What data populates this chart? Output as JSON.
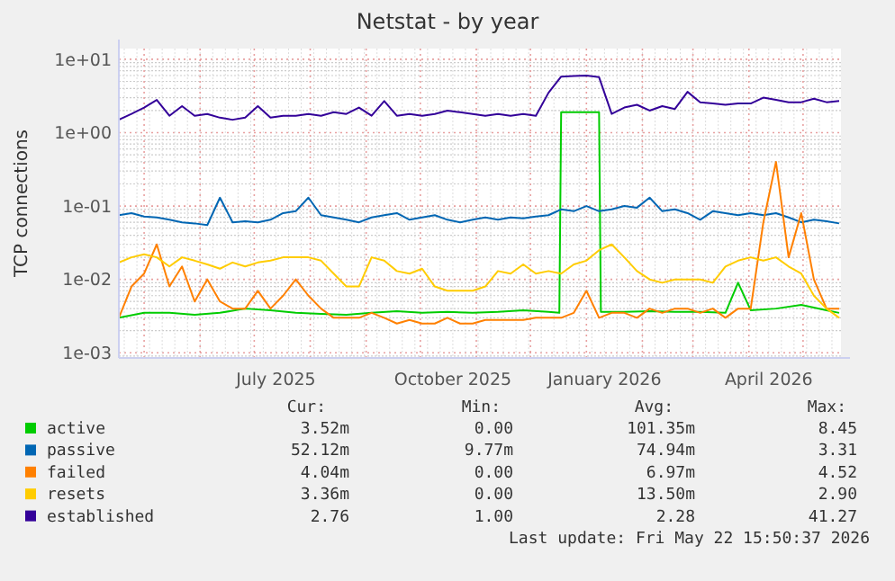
{
  "chart_data": {
    "type": "line",
    "title": "Netstat - by year",
    "ylabel": "TCP connections",
    "log": "y",
    "grid": true,
    "legend": "bottom",
    "marker": "none",
    "line_style": "solid",
    "xlim": [
      "2025-04-17",
      "2026-05-22"
    ],
    "xticks": [
      {
        "value": "2025-07-13",
        "label": "July 2025"
      },
      {
        "value": "2025-10-19",
        "label": "October 2025"
      },
      {
        "value": "2026-01-11",
        "label": "January 2026"
      },
      {
        "value": "2026-04-12",
        "label": "April 2026"
      }
    ],
    "ylim": [
      0.00085,
      14
    ],
    "yticks": [
      {
        "value": 0.001,
        "label": "1e-03"
      },
      {
        "value": 0.01,
        "label": "1e-02"
      },
      {
        "value": 0.1,
        "label": "1e-01"
      },
      {
        "value": 1,
        "label": "1e+00"
      },
      {
        "value": 10,
        "label": "1e+01"
      }
    ],
    "x": [
      "2025-04-17",
      "2025-04-24",
      "2025-05-01",
      "2025-05-08",
      "2025-05-15",
      "2025-05-22",
      "2025-05-29",
      "2025-06-05",
      "2025-06-12",
      "2025-06-19",
      "2025-06-26",
      "2025-07-03",
      "2025-07-10",
      "2025-07-17",
      "2025-07-24",
      "2025-07-31",
      "2025-08-07",
      "2025-08-14",
      "2025-08-21",
      "2025-08-28",
      "2025-09-04",
      "2025-09-11",
      "2025-09-18",
      "2025-09-25",
      "2025-10-02",
      "2025-10-09",
      "2025-10-16",
      "2025-10-23",
      "2025-10-30",
      "2025-11-06",
      "2025-11-13",
      "2025-11-20",
      "2025-11-27",
      "2025-12-04",
      "2025-12-11",
      "2025-12-18",
      "2025-12-25",
      "2026-01-01",
      "2026-01-08",
      "2026-01-15",
      "2026-01-22",
      "2026-01-29",
      "2026-02-05",
      "2026-02-12",
      "2026-02-19",
      "2026-02-26",
      "2026-03-05",
      "2026-03-12",
      "2026-03-19",
      "2026-03-26",
      "2026-04-02",
      "2026-04-09",
      "2026-04-16",
      "2026-04-23",
      "2026-04-30",
      "2026-05-07",
      "2026-05-14",
      "2026-05-21"
    ],
    "series": [
      {
        "name": "active",
        "color": "#00cc00",
        "x": [
          "2025-04-17",
          "2025-05-01",
          "2025-05-15",
          "2025-05-29",
          "2025-06-12",
          "2025-06-26",
          "2025-07-10",
          "2025-07-24",
          "2025-08-07",
          "2025-08-21",
          "2025-09-04",
          "2025-09-18",
          "2025-10-02",
          "2025-10-16",
          "2025-10-30",
          "2025-11-13",
          "2025-11-27",
          "2025-12-11",
          "2025-12-17",
          "2025-12-18",
          "2025-12-25",
          "2026-01-01",
          "2026-01-08",
          "2026-01-09",
          "2026-01-22",
          "2026-02-05",
          "2026-02-19",
          "2026-03-05",
          "2026-03-19",
          "2026-03-26",
          "2026-04-02",
          "2026-04-16",
          "2026-04-30",
          "2026-05-14",
          "2026-05-21"
        ],
        "values": [
          0.003,
          0.0035,
          0.0035,
          0.0033,
          0.0035,
          0.004,
          0.0038,
          0.0035,
          0.0034,
          0.0033,
          0.0035,
          0.0037,
          0.0035,
          0.0036,
          0.0035,
          0.0036,
          0.0038,
          0.0036,
          0.0035,
          1.9,
          1.9,
          1.9,
          1.9,
          0.0036,
          0.0036,
          0.0037,
          0.0036,
          0.0036,
          0.0035,
          0.009,
          0.0038,
          0.004,
          0.0045,
          0.0038,
          0.0035
        ]
      },
      {
        "name": "passive",
        "color": "#0066b3",
        "values": [
          0.075,
          0.08,
          0.072,
          0.07,
          0.065,
          0.06,
          0.058,
          0.055,
          0.13,
          0.06,
          0.062,
          0.06,
          0.065,
          0.08,
          0.085,
          0.13,
          0.075,
          0.07,
          0.065,
          0.06,
          0.07,
          0.075,
          0.08,
          0.065,
          0.07,
          0.075,
          0.065,
          0.06,
          0.065,
          0.07,
          0.065,
          0.07,
          0.068,
          0.072,
          0.075,
          0.09,
          0.085,
          0.1,
          0.085,
          0.09,
          0.1,
          0.095,
          0.13,
          0.085,
          0.09,
          0.08,
          0.065,
          0.085,
          0.08,
          0.075,
          0.08,
          0.075,
          0.08,
          0.07,
          0.06,
          0.065,
          0.062,
          0.058
        ]
      },
      {
        "name": "failed",
        "color": "#ff8000",
        "values": [
          0.003,
          0.008,
          0.012,
          0.03,
          0.008,
          0.015,
          0.005,
          0.01,
          0.005,
          0.004,
          0.004,
          0.007,
          0.004,
          0.006,
          0.01,
          0.006,
          0.004,
          0.003,
          0.003,
          0.003,
          0.0035,
          0.003,
          0.0025,
          0.0028,
          0.0025,
          0.0025,
          0.003,
          0.0025,
          0.0025,
          0.0028,
          0.0028,
          0.0028,
          0.0028,
          0.003,
          0.003,
          0.003,
          0.0035,
          0.007,
          0.003,
          0.0035,
          0.0035,
          0.003,
          0.004,
          0.0035,
          0.004,
          0.004,
          0.0035,
          0.004,
          0.003,
          0.004,
          0.004,
          0.06,
          0.4,
          0.02,
          0.08,
          0.01,
          0.004,
          0.004
        ]
      },
      {
        "name": "resets",
        "color": "#ffcc00",
        "values": [
          0.017,
          0.02,
          0.022,
          0.02,
          0.015,
          0.02,
          0.018,
          0.016,
          0.014,
          0.017,
          0.015,
          0.017,
          0.018,
          0.02,
          0.02,
          0.02,
          0.018,
          0.012,
          0.008,
          0.008,
          0.02,
          0.018,
          0.013,
          0.012,
          0.014,
          0.008,
          0.007,
          0.007,
          0.007,
          0.008,
          0.013,
          0.012,
          0.016,
          0.012,
          0.013,
          0.012,
          0.016,
          0.018,
          0.025,
          0.03,
          0.02,
          0.013,
          0.01,
          0.009,
          0.01,
          0.01,
          0.01,
          0.009,
          0.015,
          0.018,
          0.02,
          0.018,
          0.02,
          0.015,
          0.012,
          0.006,
          0.004,
          0.003
        ]
      },
      {
        "name": "established",
        "color": "#330099",
        "values": [
          1.5,
          1.8,
          2.2,
          2.8,
          1.7,
          2.3,
          1.7,
          1.8,
          1.6,
          1.5,
          1.6,
          2.3,
          1.6,
          1.7,
          1.7,
          1.8,
          1.7,
          1.9,
          1.8,
          2.2,
          1.7,
          2.7,
          1.7,
          1.8,
          1.7,
          1.8,
          2.0,
          1.9,
          1.8,
          1.7,
          1.8,
          1.7,
          1.8,
          1.7,
          3.5,
          5.8,
          5.9,
          6.0,
          5.7,
          1.8,
          2.2,
          2.4,
          2.0,
          2.3,
          2.1,
          3.6,
          2.6,
          2.5,
          2.4,
          2.5,
          2.5,
          3.0,
          2.8,
          2.6,
          2.6,
          2.9,
          2.6,
          2.7
        ]
      }
    ],
    "annotations": [
      "Cur:",
      "Min:",
      "Avg:",
      "Max:",
      "3.52m",
      "0.00",
      "101.35m",
      "8.45",
      "52.12m",
      "9.77m",
      "74.94m",
      "3.31",
      "4.04m",
      "0.00",
      "6.97m",
      "4.52",
      "3.36m",
      "0.00",
      "13.50m",
      "2.90",
      "2.76",
      "1.00",
      "2.28",
      "41.27",
      "Last update: Fri May 22 15:50:37 2026"
    ]
  }
}
